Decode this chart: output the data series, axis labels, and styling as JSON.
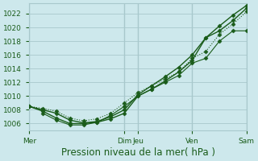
{
  "title": "",
  "xlabel": "Pression niveau de la mer( hPa )",
  "ylabel": "",
  "bg_color": "#cde8ec",
  "grid_color": "#a8c8cc",
  "line_color": "#1a5c1a",
  "ylim": [
    1005.0,
    1023.5
  ],
  "yticks": [
    1006,
    1008,
    1010,
    1012,
    1014,
    1016,
    1018,
    1020,
    1022
  ],
  "xtick_labels": [
    "Mer",
    "Dim",
    "Jeu",
    "Ven",
    "Sam"
  ],
  "xtick_pos": [
    0,
    3.5,
    4.0,
    6.0,
    8.0
  ],
  "x_total": 8.0,
  "series": [
    {
      "x": [
        0,
        0.5,
        1.0,
        1.5,
        2.0,
        2.5,
        3.0,
        3.5,
        4.0,
        4.5,
        5.0,
        5.5,
        6.0,
        6.5,
        7.0,
        7.5,
        8.0
      ],
      "y": [
        1008.5,
        1008.0,
        1007.5,
        1006.5,
        1006.1,
        1006.3,
        1007.0,
        1008.0,
        1010.2,
        1011.5,
        1012.8,
        1014.2,
        1016.0,
        1018.5,
        1020.2,
        1021.8,
        1023.2
      ],
      "marker": "D",
      "markersize": 2.5,
      "linewidth": 1.0,
      "linestyle": "-"
    },
    {
      "x": [
        0,
        0.5,
        1.0,
        1.5,
        2.0,
        2.5,
        3.0,
        3.5,
        4.0,
        4.5,
        5.0,
        5.5,
        6.0,
        6.5,
        7.0,
        7.5,
        8.0
      ],
      "y": [
        1008.5,
        1007.8,
        1006.8,
        1006.0,
        1006.0,
        1006.2,
        1006.7,
        1007.5,
        1010.0,
        1011.0,
        1012.2,
        1013.5,
        1015.2,
        1018.5,
        1019.5,
        1021.0,
        1022.8
      ],
      "marker": "D",
      "markersize": 2.5,
      "linewidth": 1.0,
      "linestyle": "-"
    },
    {
      "x": [
        0,
        0.5,
        1.0,
        1.5,
        2.0,
        2.5,
        3.0,
        3.5,
        4.0,
        4.5,
        5.0,
        5.5,
        6.0,
        6.5,
        7.0,
        7.5,
        8.0
      ],
      "y": [
        1008.5,
        1008.2,
        1007.8,
        1006.8,
        1006.4,
        1006.7,
        1007.5,
        1009.0,
        1010.5,
        1011.5,
        1012.5,
        1013.5,
        1015.5,
        1016.5,
        1019.0,
        1020.5,
        1022.3
      ],
      "marker": "D",
      "markersize": 2.5,
      "linewidth": 0.8,
      "linestyle": ":"
    },
    {
      "x": [
        0.5,
        1.0,
        1.5,
        2.0,
        2.5,
        3.0,
        3.5,
        4.0,
        4.5,
        5.0,
        5.5,
        6.0,
        6.5,
        7.0,
        7.5,
        8.0
      ],
      "y": [
        1007.5,
        1006.5,
        1005.8,
        1005.8,
        1006.2,
        1007.2,
        1008.5,
        1010.0,
        1011.0,
        1012.0,
        1013.0,
        1014.8,
        1015.5,
        1018.0,
        1019.5,
        1019.5
      ],
      "marker": "D",
      "markersize": 2.5,
      "linewidth": 0.8,
      "linestyle": "-"
    }
  ],
  "vlines": [
    3.5,
    4.0,
    6.0
  ],
  "left_vline": 0.0,
  "right_vline": 8.0,
  "xlabel_fontsize": 8.5,
  "tick_fontsize": 6.5
}
